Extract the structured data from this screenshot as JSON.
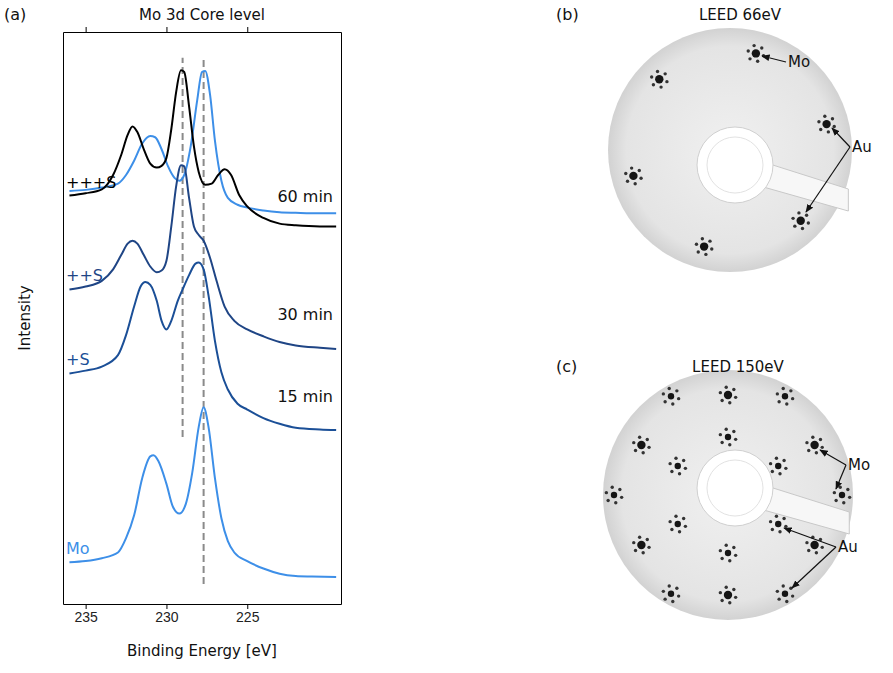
{
  "chart_data": {
    "type": "line",
    "panel": "(a)",
    "title": "Mo 3d Core level",
    "x_label": "Binding Energy [eV]",
    "y_label": "Intensity",
    "xlim": [
      236.4,
      219.2
    ],
    "xticks": [
      235,
      230,
      225
    ],
    "ylim": [
      0,
      100
    ],
    "tick_labels": "x",
    "grid": false,
    "series": [
      {
        "name": "Mo",
        "color": "#3d8fe8",
        "x": [
          236,
          235,
          234,
          233,
          232.5,
          232,
          231.5,
          231,
          230.8,
          230.5,
          230,
          229.6,
          229.2,
          228.8,
          228.4,
          228.0,
          227.7,
          227.4,
          227.0,
          226.6,
          226.2,
          225.8,
          225,
          224,
          223,
          222,
          221,
          219.5
        ],
        "values": [
          7.3,
          7.5,
          8.0,
          9.0,
          11.5,
          15.5,
          22,
          25.8,
          26,
          25,
          21,
          17,
          15.8,
          17.5,
          23,
          31,
          34.4,
          31,
          22,
          15,
          11,
          9,
          7.5,
          6.2,
          5.3,
          4.9,
          4.8,
          4.7
        ]
      },
      {
        "name": "+S",
        "time": "15 min",
        "color": "#1b4f97",
        "x": [
          236,
          235,
          234,
          233,
          232.5,
          232,
          231.6,
          231.3,
          231,
          230.6,
          230.3,
          230.0,
          229.7,
          229.3,
          229.0,
          228.6,
          228.2,
          228.0,
          227.7,
          227.4,
          227.0,
          226.6,
          226.2,
          225.6,
          225,
          224,
          223,
          222,
          220.5,
          219.5
        ],
        "values": [
          40.3,
          40.8,
          41.5,
          43.5,
          47,
          52,
          55.5,
          56.3,
          55.8,
          53,
          49.5,
          48,
          49.5,
          53,
          55,
          57.5,
          59.5,
          59.7,
          58.5,
          54,
          46,
          40.5,
          37.5,
          35,
          34,
          32.5,
          31.5,
          30.8,
          30.5,
          30.4
        ]
      },
      {
        "name": "++S",
        "time": "30 min",
        "color": "#1f4585",
        "x": [
          236,
          235,
          234,
          233.3,
          232.8,
          232.4,
          232.1,
          231.8,
          231.4,
          231,
          230.6,
          230.3,
          230,
          229.7,
          229.4,
          229.1,
          228.9,
          228.6,
          228.3,
          228.0,
          227.7,
          227.3,
          226.9,
          226.4,
          225.8,
          225,
          224,
          223,
          222,
          220.5,
          219.5
        ],
        "values": [
          55.0,
          55.5,
          56.5,
          58.5,
          61,
          63,
          63.5,
          63,
          61,
          59,
          58,
          58.3,
          60,
          66,
          73,
          76.7,
          76.5,
          71,
          66,
          64.5,
          63.5,
          60.5,
          56.5,
          52,
          49.5,
          48,
          46.8,
          45.8,
          45.2,
          44.8,
          44.6
        ]
      },
      {
        "name": "+++S",
        "time": "60 min",
        "color": "#000000",
        "x": [
          236,
          235,
          234,
          233.3,
          232.8,
          232.4,
          232.1,
          231.8,
          231.4,
          231,
          230.6,
          230.3,
          230.0,
          229.7,
          229.4,
          229.1,
          228.9,
          228.6,
          228.3,
          228.0,
          227.6,
          227.2,
          226.8,
          226.4,
          226.0,
          225.5,
          225,
          224,
          223,
          222,
          220.5,
          219.5
        ],
        "values": [
          71.4,
          71.8,
          72.5,
          75,
          78.5,
          82,
          83.5,
          82.5,
          79.5,
          77,
          76.3,
          76.6,
          78,
          83,
          89.5,
          93.3,
          93,
          87,
          80,
          75.5,
          73.3,
          73.5,
          75,
          76,
          75,
          71.5,
          69.5,
          67.5,
          66.5,
          66.2,
          66,
          66
        ]
      },
      {
        "color": "#3d8fe8",
        "x": [
          236,
          235,
          234,
          233,
          232.5,
          232,
          231.5,
          231,
          230.7,
          230.3,
          229.9,
          229.5,
          229.2,
          228.9,
          228.5,
          228.1,
          227.8,
          227.6,
          227.3,
          227.0,
          226.6,
          226.2,
          225.6,
          225,
          224,
          223,
          222,
          220.5,
          219.5
        ],
        "values": [
          72.2,
          72.4,
          72.8,
          73.5,
          75,
          77.5,
          80.5,
          81.8,
          81.6,
          79.5,
          76.5,
          74.5,
          74.0,
          75,
          80,
          88,
          93,
          93.2,
          89,
          81,
          74,
          71,
          69.8,
          69.3,
          68.8,
          68.5,
          68.4,
          68.3,
          68.3
        ]
      }
    ],
    "reference_lines": [
      {
        "x": 229.0,
        "y_from": 29.2,
        "y_to": 95.5
      },
      {
        "x": 227.7,
        "y_from": 3.5,
        "y_to": 95.5
      }
    ]
  },
  "leed_panels": [
    {
      "letter": "(b)",
      "title": "LEED 66eV",
      "labels": [
        "Mo",
        "Au"
      ]
    },
    {
      "letter": "(c)",
      "title": "LEED 150eV",
      "labels": [
        "Mo",
        "Au"
      ]
    }
  ]
}
